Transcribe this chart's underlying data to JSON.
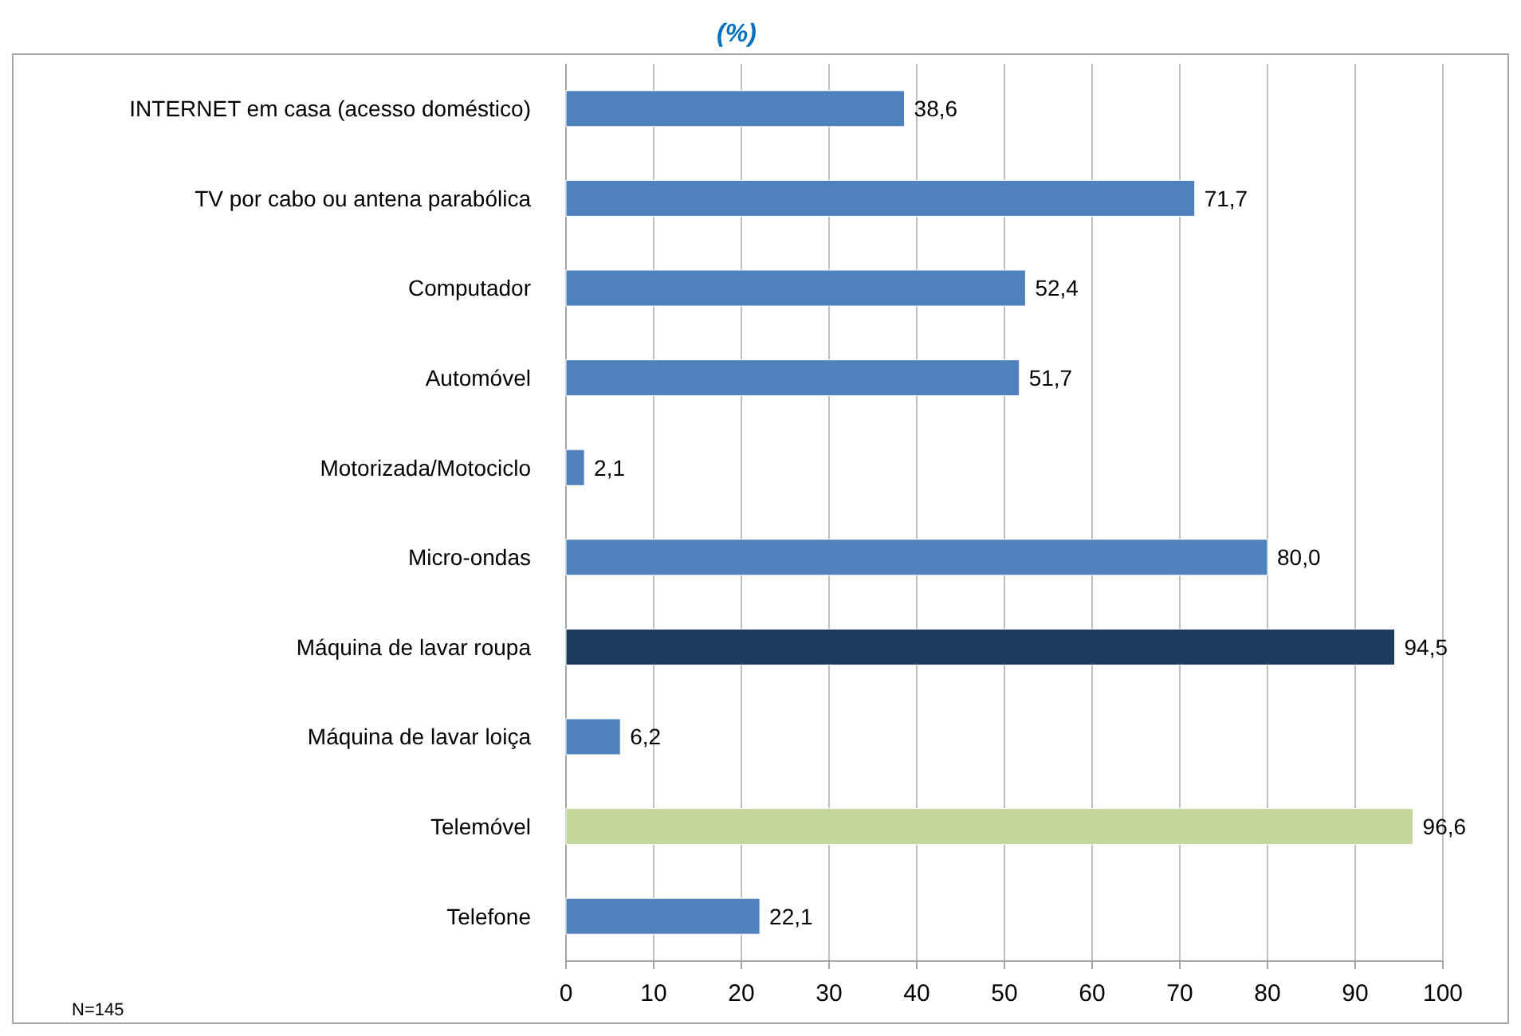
{
  "chart_data": {
    "type": "bar",
    "orientation": "horizontal",
    "title": "(%)",
    "categories": [
      "INTERNET  em casa (acesso doméstico)",
      "TV por cabo ou antena parabólica",
      "Computador",
      "Automóvel",
      "Motorizada/Motociclo",
      "Micro-ondas",
      "Máquina de lavar roupa",
      "Máquina de lavar loiça",
      "Telemóvel",
      "Telefone"
    ],
    "values": [
      38.6,
      71.7,
      52.4,
      51.7,
      2.1,
      80.0,
      94.5,
      6.2,
      96.6,
      22.1
    ],
    "colors": [
      "#4f81bd",
      "#4f81bd",
      "#4f81bd",
      "#4f81bd",
      "#4f81bd",
      "#4f81bd",
      "#1f3a5f",
      "#4f81bd",
      "#c3d69b",
      "#4f81bd"
    ],
    "value_labels": [
      "38,6",
      "71,7",
      "52,4",
      "51,7",
      "2,1",
      "80,0",
      "94,5",
      "6,2",
      "96,6",
      "22,1"
    ],
    "xlim": [
      0,
      100
    ],
    "xticks": [
      0,
      10,
      20,
      30,
      40,
      50,
      60,
      70,
      80,
      90,
      100
    ],
    "grid": "x",
    "annotations": [
      "N=145"
    ]
  }
}
